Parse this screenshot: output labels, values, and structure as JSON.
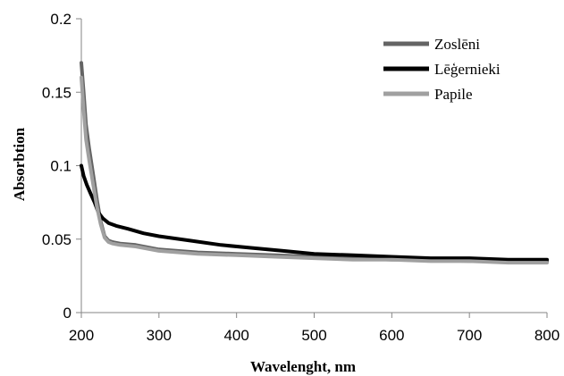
{
  "chart_data": {
    "type": "line",
    "title": "",
    "xlabel": "Wavelenght, nm",
    "ylabel": "Absorbtion",
    "xlim": [
      200,
      800
    ],
    "ylim": [
      0,
      0.2
    ],
    "xticks": [
      200,
      300,
      400,
      500,
      600,
      700,
      800
    ],
    "yticks": [
      0,
      0.05,
      0.1,
      0.15,
      0.2
    ],
    "ytick_labels": [
      "0",
      "0.05",
      "0.1",
      "0.15",
      "0.2"
    ],
    "xtick_labels": [
      "200",
      "300",
      "400",
      "500",
      "600",
      "700",
      "800"
    ],
    "grid": false,
    "legend_position": "top-right",
    "series": [
      {
        "name": "Zoslēni",
        "color": "#646464",
        "x": [
          200,
          203,
          206,
          210,
          215,
          220,
          225,
          230,
          235,
          240,
          250,
          270,
          300,
          350,
          400,
          450,
          500,
          550,
          600,
          650,
          700,
          750,
          800
        ],
        "y": [
          0.17,
          0.15,
          0.128,
          0.112,
          0.095,
          0.077,
          0.062,
          0.052,
          0.049,
          0.048,
          0.047,
          0.046,
          0.043,
          0.041,
          0.04,
          0.039,
          0.038,
          0.037,
          0.036,
          0.036,
          0.035,
          0.035,
          0.035
        ]
      },
      {
        "name": "Lēģernieki",
        "color": "#000000",
        "x": [
          200,
          203,
          207,
          212,
          217,
          222,
          228,
          235,
          245,
          260,
          280,
          300,
          340,
          380,
          420,
          460,
          500,
          550,
          600,
          650,
          700,
          750,
          800
        ],
        "y": [
          0.1,
          0.093,
          0.087,
          0.081,
          0.075,
          0.068,
          0.064,
          0.061,
          0.059,
          0.057,
          0.054,
          0.052,
          0.049,
          0.046,
          0.044,
          0.042,
          0.04,
          0.039,
          0.038,
          0.037,
          0.037,
          0.036,
          0.036
        ]
      },
      {
        "name": "Papile",
        "color": "#a0a0a0",
        "x": [
          200,
          203,
          206,
          210,
          215,
          220,
          225,
          230,
          235,
          240,
          250,
          270,
          300,
          350,
          400,
          450,
          500,
          550,
          600,
          650,
          700,
          750,
          800
        ],
        "y": [
          0.16,
          0.138,
          0.118,
          0.104,
          0.088,
          0.072,
          0.06,
          0.051,
          0.048,
          0.047,
          0.046,
          0.045,
          0.042,
          0.04,
          0.039,
          0.038,
          0.037,
          0.036,
          0.036,
          0.035,
          0.035,
          0.034,
          0.034
        ]
      }
    ]
  }
}
